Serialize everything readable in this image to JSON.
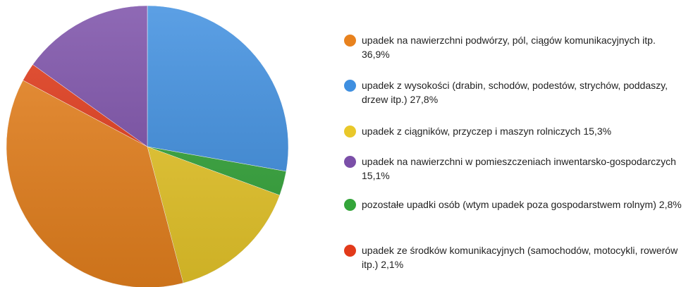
{
  "chart_data": {
    "type": "pie",
    "series": [
      {
        "name": "upadek na nawierzchni podwórzy, pól, ciągów komunikacyjnych itp.",
        "color": "#e8821e",
        "values": [
          36.9
        ],
        "value_labels": [
          "36,9%"
        ]
      },
      {
        "name": "upadek z wysokości (drabin, schodów, podestów, strychów, poddaszy, drzew itp.)",
        "color": "#3f8fe0",
        "values": [
          27.8
        ],
        "value_labels": [
          "27,8%"
        ]
      },
      {
        "name": "upadek z ciągników, przyczep i maszyn rolniczych",
        "color": "#e9c82a",
        "values": [
          15.3
        ],
        "value_labels": [
          "15,3%"
        ]
      },
      {
        "name": "upadek na nawierzchni w pomieszczeniach inwentarsko-gospodarczych",
        "color": "#7b4fa8",
        "values": [
          15.1
        ],
        "value_labels": [
          "15,1%"
        ]
      },
      {
        "name": "pozostałe upadki osób (wtym upadek poza gospodarstwem rolnym)",
        "color": "#34a53a",
        "values": [
          2.8
        ],
        "value_labels": [
          "2,8%"
        ]
      },
      {
        "name": "upadek ze środków komunikacyjnych (samochodów, motocykli, rowerów itp.)",
        "color": "#e23a1a",
        "values": [
          2.1
        ],
        "value_labels": [
          "2,1%"
        ]
      }
    ],
    "slice_order": [
      1,
      4,
      2,
      0,
      5,
      3
    ],
    "legend": "right"
  }
}
